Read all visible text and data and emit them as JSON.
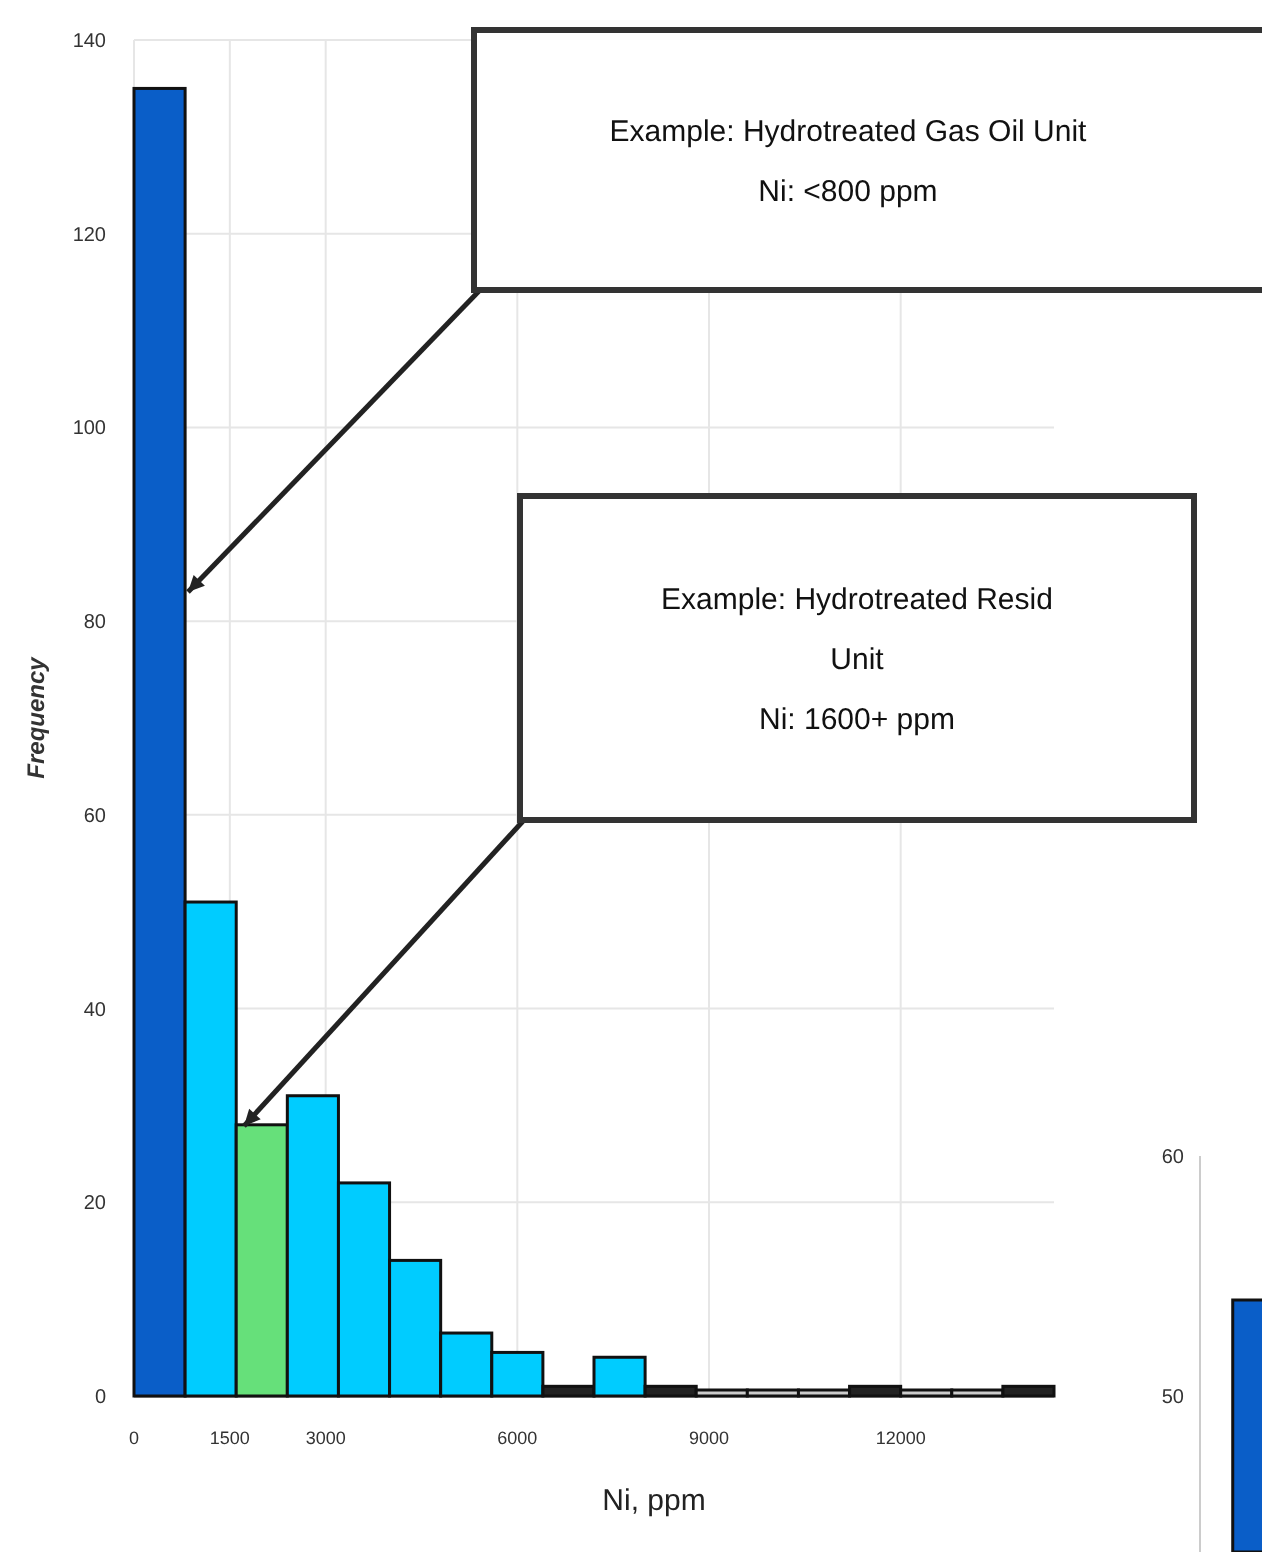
{
  "chart_data": [
    {
      "type": "histogram",
      "xlabel": "Ni, ppm",
      "ylabel": "Frequency",
      "bins": [
        0,
        800,
        1600,
        2400,
        3200,
        4000,
        4800,
        5600,
        6400,
        7200,
        8000,
        8800,
        9600,
        10400,
        11200,
        12000,
        12800,
        13600,
        14400
      ],
      "values": [
        135,
        51,
        28,
        31,
        22,
        14,
        6.5,
        4.5,
        1,
        4,
        1,
        0,
        0,
        0,
        1,
        0,
        0,
        1
      ],
      "colors": [
        "#0a5ec8",
        "#00ccff",
        "#66e07a",
        "#00ccff",
        "#00ccff",
        "#00ccff",
        "#00ccff",
        "#00ccff",
        "#222222",
        "#00ccff",
        "#222222",
        "#cccccc",
        "#cccccc",
        "#cccccc",
        "#222222",
        "#cccccc",
        "#cccccc",
        "#222222"
      ],
      "xlim": [
        0,
        14400
      ],
      "xticks": [
        0,
        1500,
        3000,
        6000,
        9000,
        12000
      ],
      "ylim": [
        0,
        140
      ],
      "yticks": [
        0,
        20,
        40,
        60,
        80,
        100,
        120,
        140
      ],
      "grid": true,
      "annotations": [
        "Example: Hydrotreated Gas Oil Unit\nNi: <800 ppm",
        "Example: Hydrotreated Resid\nUnit\nNi: 1600+ ppm"
      ]
    },
    {
      "type": "bar",
      "categories": [
        null
      ],
      "values": [
        54
      ],
      "color": "#0a5ec8",
      "ylim": [
        43.5,
        60
      ],
      "yticks": [
        50,
        60
      ],
      "tick_labels": "y"
    }
  ]
}
